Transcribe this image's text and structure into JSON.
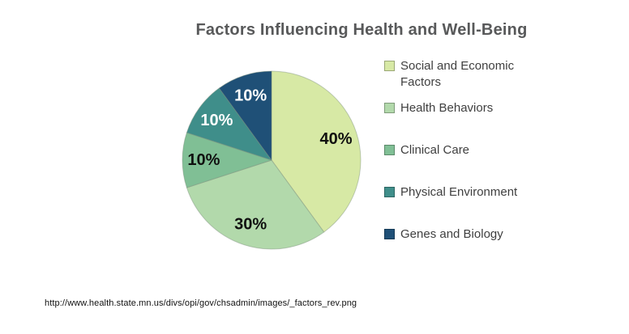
{
  "title": "Factors Influencing Health and Well-Being",
  "source_url": "http://www.health.state.mn.us/divs/opi/gov/chsadmin/images/_factors_rev.png",
  "chart_data": {
    "type": "pie",
    "title": "Factors Influencing Health and Well-Being",
    "start": "12 o'clock",
    "direction": "clockwise",
    "legend_position": "right",
    "slices": [
      {
        "label": "Social and Economic Factors",
        "value": 40,
        "pct_label": "40%",
        "color": "#d7e9a5",
        "label_color": "#101010"
      },
      {
        "label": "Health Behaviors",
        "value": 30,
        "pct_label": "30%",
        "color": "#b2d9ab",
        "label_color": "#101010"
      },
      {
        "label": "Clinical Care",
        "value": 10,
        "pct_label": "10%",
        "color": "#80bf95",
        "label_color": "#101010"
      },
      {
        "label": "Physical Environment",
        "value": 10,
        "pct_label": "10%",
        "color": "#3f8e8a",
        "label_color": "#ffffff"
      },
      {
        "label": "Genes and Biology",
        "value": 10,
        "pct_label": "10%",
        "color": "#1f5077",
        "label_color": "#ffffff"
      }
    ]
  }
}
